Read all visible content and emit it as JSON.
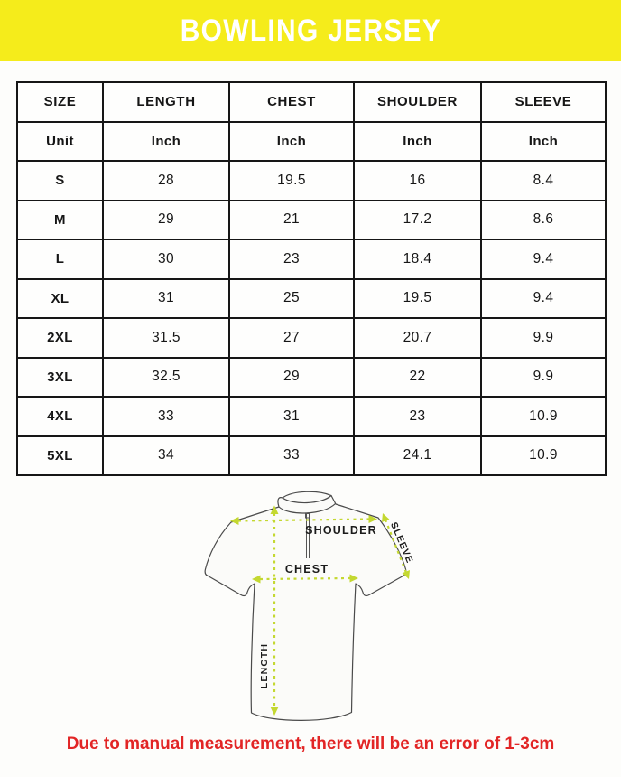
{
  "header": {
    "title": "BOWLING JERSEY"
  },
  "chart_data": {
    "type": "table",
    "title": "BOWLING JERSEY",
    "columns": [
      "SIZE",
      "LENGTH",
      "CHEST",
      "SHOULDER",
      "SLEEVE"
    ],
    "unit_row": [
      "Unit",
      "Inch",
      "Inch",
      "Inch",
      "Inch"
    ],
    "rows": [
      [
        "S",
        "28",
        "19.5",
        "16",
        "8.4"
      ],
      [
        "M",
        "29",
        "21",
        "17.2",
        "8.6"
      ],
      [
        "L",
        "30",
        "23",
        "18.4",
        "9.4"
      ],
      [
        "XL",
        "31",
        "25",
        "19.5",
        "9.4"
      ],
      [
        "2XL",
        "31.5",
        "27",
        "20.7",
        "9.9"
      ],
      [
        "3XL",
        "32.5",
        "29",
        "22",
        "9.9"
      ],
      [
        "4XL",
        "33",
        "31",
        "23",
        "10.9"
      ],
      [
        "5XL",
        "34",
        "33",
        "24.1",
        "10.9"
      ]
    ]
  },
  "diagram": {
    "labels": {
      "shoulder": "SHOULDER",
      "sleeve": "SLEEVE",
      "chest": "CHEST",
      "length": "LENGTH"
    }
  },
  "footer": {
    "disclaimer": "Due to manual measurement, there will be an error of 1-3cm"
  },
  "colors": {
    "banner_yellow": "#F5EC1B",
    "arrow_green": "#C4D831",
    "disclaimer_red": "#E22525",
    "table_border": "#161616",
    "banner_text": "#FFFFFF"
  }
}
